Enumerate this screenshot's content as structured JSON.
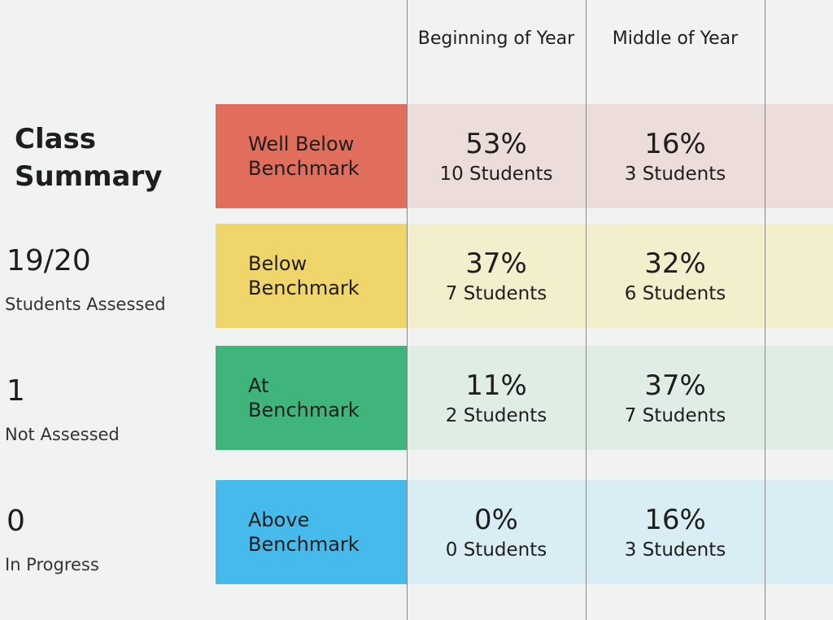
{
  "summary": {
    "title": "Class Summary",
    "stats": [
      {
        "value": "19/20",
        "label": "Students Assessed"
      },
      {
        "value": "1",
        "label": "Not Assessed"
      },
      {
        "value": "0",
        "label": "In Progress"
      }
    ]
  },
  "table": {
    "columns": [
      "Beginning of Year",
      "Middle of Year"
    ],
    "rows": [
      {
        "level": "Well Below Benchmark",
        "color": "#e16d5c",
        "tint": "#ecdcda",
        "cells": [
          {
            "percent": "53%",
            "students": "10 Students"
          },
          {
            "percent": "16%",
            "students": "3 Students"
          }
        ]
      },
      {
        "level": "Below Benchmark",
        "color": "#f0d56b",
        "tint": "#f3eecb",
        "cells": [
          {
            "percent": "37%",
            "students": "7 Students"
          },
          {
            "percent": "32%",
            "students": "6 Students"
          }
        ]
      },
      {
        "level": "At Benchmark",
        "color": "#3fb57b",
        "tint": "#e0ede5",
        "cells": [
          {
            "percent": "11%",
            "students": "2 Students"
          },
          {
            "percent": "37%",
            "students": "7 Students"
          }
        ]
      },
      {
        "level": "Above Benchmark",
        "color": "#47baec",
        "tint": "#d9edf4",
        "cells": [
          {
            "percent": "0%",
            "students": "0 Students"
          },
          {
            "percent": "16%",
            "students": "3 Students"
          }
        ]
      }
    ]
  }
}
